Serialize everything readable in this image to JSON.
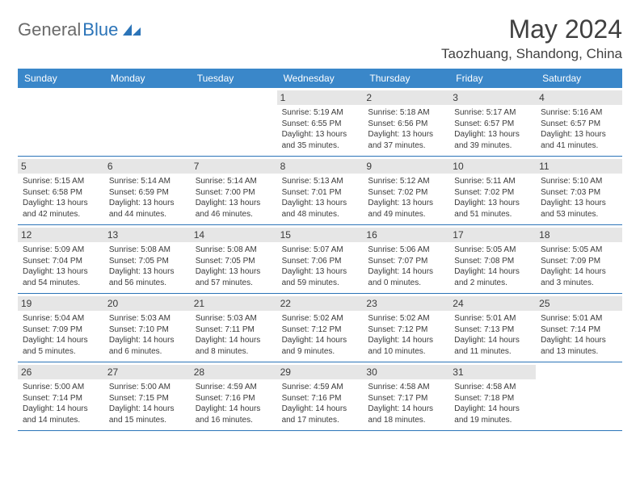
{
  "logo": {
    "text1": "General",
    "text2": "Blue"
  },
  "title": "May 2024",
  "location": "Taozhuang, Shandong, China",
  "colors": {
    "header_bg": "#3a87c9",
    "border": "#2b74b8",
    "daynum_bg": "#e6e6e6",
    "text": "#3a3a3a",
    "logo_gray": "#6a6a6a",
    "logo_blue": "#2b74b8"
  },
  "weekdays": [
    "Sunday",
    "Monday",
    "Tuesday",
    "Wednesday",
    "Thursday",
    "Friday",
    "Saturday"
  ],
  "weeks": [
    [
      null,
      null,
      null,
      {
        "num": "1",
        "sunrise": "Sunrise: 5:19 AM",
        "sunset": "Sunset: 6:55 PM",
        "day1": "Daylight: 13 hours",
        "day2": "and 35 minutes."
      },
      {
        "num": "2",
        "sunrise": "Sunrise: 5:18 AM",
        "sunset": "Sunset: 6:56 PM",
        "day1": "Daylight: 13 hours",
        "day2": "and 37 minutes."
      },
      {
        "num": "3",
        "sunrise": "Sunrise: 5:17 AM",
        "sunset": "Sunset: 6:57 PM",
        "day1": "Daylight: 13 hours",
        "day2": "and 39 minutes."
      },
      {
        "num": "4",
        "sunrise": "Sunrise: 5:16 AM",
        "sunset": "Sunset: 6:57 PM",
        "day1": "Daylight: 13 hours",
        "day2": "and 41 minutes."
      }
    ],
    [
      {
        "num": "5",
        "sunrise": "Sunrise: 5:15 AM",
        "sunset": "Sunset: 6:58 PM",
        "day1": "Daylight: 13 hours",
        "day2": "and 42 minutes."
      },
      {
        "num": "6",
        "sunrise": "Sunrise: 5:14 AM",
        "sunset": "Sunset: 6:59 PM",
        "day1": "Daylight: 13 hours",
        "day2": "and 44 minutes."
      },
      {
        "num": "7",
        "sunrise": "Sunrise: 5:14 AM",
        "sunset": "Sunset: 7:00 PM",
        "day1": "Daylight: 13 hours",
        "day2": "and 46 minutes."
      },
      {
        "num": "8",
        "sunrise": "Sunrise: 5:13 AM",
        "sunset": "Sunset: 7:01 PM",
        "day1": "Daylight: 13 hours",
        "day2": "and 48 minutes."
      },
      {
        "num": "9",
        "sunrise": "Sunrise: 5:12 AM",
        "sunset": "Sunset: 7:02 PM",
        "day1": "Daylight: 13 hours",
        "day2": "and 49 minutes."
      },
      {
        "num": "10",
        "sunrise": "Sunrise: 5:11 AM",
        "sunset": "Sunset: 7:02 PM",
        "day1": "Daylight: 13 hours",
        "day2": "and 51 minutes."
      },
      {
        "num": "11",
        "sunrise": "Sunrise: 5:10 AM",
        "sunset": "Sunset: 7:03 PM",
        "day1": "Daylight: 13 hours",
        "day2": "and 53 minutes."
      }
    ],
    [
      {
        "num": "12",
        "sunrise": "Sunrise: 5:09 AM",
        "sunset": "Sunset: 7:04 PM",
        "day1": "Daylight: 13 hours",
        "day2": "and 54 minutes."
      },
      {
        "num": "13",
        "sunrise": "Sunrise: 5:08 AM",
        "sunset": "Sunset: 7:05 PM",
        "day1": "Daylight: 13 hours",
        "day2": "and 56 minutes."
      },
      {
        "num": "14",
        "sunrise": "Sunrise: 5:08 AM",
        "sunset": "Sunset: 7:05 PM",
        "day1": "Daylight: 13 hours",
        "day2": "and 57 minutes."
      },
      {
        "num": "15",
        "sunrise": "Sunrise: 5:07 AM",
        "sunset": "Sunset: 7:06 PM",
        "day1": "Daylight: 13 hours",
        "day2": "and 59 minutes."
      },
      {
        "num": "16",
        "sunrise": "Sunrise: 5:06 AM",
        "sunset": "Sunset: 7:07 PM",
        "day1": "Daylight: 14 hours",
        "day2": "and 0 minutes."
      },
      {
        "num": "17",
        "sunrise": "Sunrise: 5:05 AM",
        "sunset": "Sunset: 7:08 PM",
        "day1": "Daylight: 14 hours",
        "day2": "and 2 minutes."
      },
      {
        "num": "18",
        "sunrise": "Sunrise: 5:05 AM",
        "sunset": "Sunset: 7:09 PM",
        "day1": "Daylight: 14 hours",
        "day2": "and 3 minutes."
      }
    ],
    [
      {
        "num": "19",
        "sunrise": "Sunrise: 5:04 AM",
        "sunset": "Sunset: 7:09 PM",
        "day1": "Daylight: 14 hours",
        "day2": "and 5 minutes."
      },
      {
        "num": "20",
        "sunrise": "Sunrise: 5:03 AM",
        "sunset": "Sunset: 7:10 PM",
        "day1": "Daylight: 14 hours",
        "day2": "and 6 minutes."
      },
      {
        "num": "21",
        "sunrise": "Sunrise: 5:03 AM",
        "sunset": "Sunset: 7:11 PM",
        "day1": "Daylight: 14 hours",
        "day2": "and 8 minutes."
      },
      {
        "num": "22",
        "sunrise": "Sunrise: 5:02 AM",
        "sunset": "Sunset: 7:12 PM",
        "day1": "Daylight: 14 hours",
        "day2": "and 9 minutes."
      },
      {
        "num": "23",
        "sunrise": "Sunrise: 5:02 AM",
        "sunset": "Sunset: 7:12 PM",
        "day1": "Daylight: 14 hours",
        "day2": "and 10 minutes."
      },
      {
        "num": "24",
        "sunrise": "Sunrise: 5:01 AM",
        "sunset": "Sunset: 7:13 PM",
        "day1": "Daylight: 14 hours",
        "day2": "and 11 minutes."
      },
      {
        "num": "25",
        "sunrise": "Sunrise: 5:01 AM",
        "sunset": "Sunset: 7:14 PM",
        "day1": "Daylight: 14 hours",
        "day2": "and 13 minutes."
      }
    ],
    [
      {
        "num": "26",
        "sunrise": "Sunrise: 5:00 AM",
        "sunset": "Sunset: 7:14 PM",
        "day1": "Daylight: 14 hours",
        "day2": "and 14 minutes."
      },
      {
        "num": "27",
        "sunrise": "Sunrise: 5:00 AM",
        "sunset": "Sunset: 7:15 PM",
        "day1": "Daylight: 14 hours",
        "day2": "and 15 minutes."
      },
      {
        "num": "28",
        "sunrise": "Sunrise: 4:59 AM",
        "sunset": "Sunset: 7:16 PM",
        "day1": "Daylight: 14 hours",
        "day2": "and 16 minutes."
      },
      {
        "num": "29",
        "sunrise": "Sunrise: 4:59 AM",
        "sunset": "Sunset: 7:16 PM",
        "day1": "Daylight: 14 hours",
        "day2": "and 17 minutes."
      },
      {
        "num": "30",
        "sunrise": "Sunrise: 4:58 AM",
        "sunset": "Sunset: 7:17 PM",
        "day1": "Daylight: 14 hours",
        "day2": "and 18 minutes."
      },
      {
        "num": "31",
        "sunrise": "Sunrise: 4:58 AM",
        "sunset": "Sunset: 7:18 PM",
        "day1": "Daylight: 14 hours",
        "day2": "and 19 minutes."
      },
      null
    ]
  ]
}
